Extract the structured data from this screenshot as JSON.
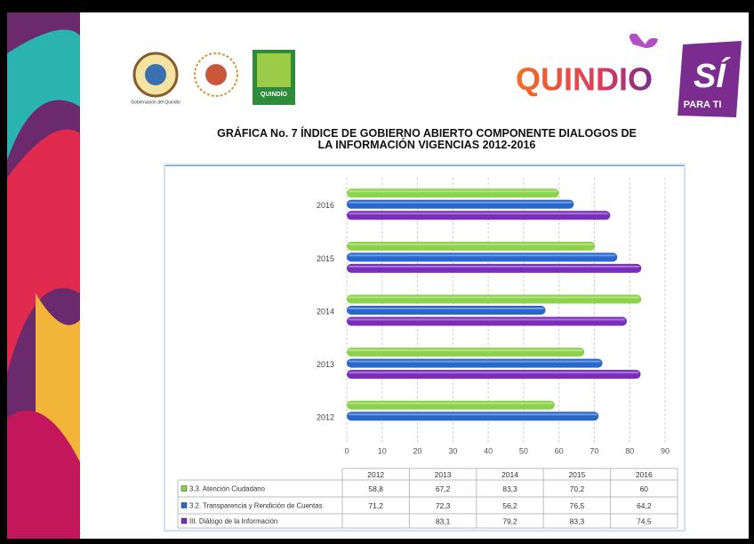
{
  "slide": {
    "logo_caption": "Gobernación del Quindío",
    "badge_text": "QUINDÍO",
    "brand": "QUINDIO",
    "brand_mark": "SÍ",
    "brand_tagline": "PARA TI"
  },
  "chart_data": {
    "type": "hbar",
    "title": "GRÁFICA  No. 7  ÍNDICE DE GOBIERNO ABIERTO  COMPONENTE  DIALOGOS DE\nLA INFORMACIÓN VIGENCIAS  2012-2016",
    "categories": [
      "2012",
      "2013",
      "2014",
      "2015",
      "2016"
    ],
    "series": [
      {
        "name": "3.3. Atención Ciudadano",
        "color": "#8cd24a",
        "values": [
          58.8,
          67.2,
          83.3,
          70.2,
          60
        ],
        "value_labels": [
          "58,8",
          "67,2",
          "83,3",
          "70,2",
          "60"
        ]
      },
      {
        "name": "3.2. Transparencia y Rendición de Cuentas",
        "color": "#2868cc",
        "values": [
          71.2,
          72.3,
          56.2,
          76.5,
          64.2
        ],
        "value_labels": [
          "71,2",
          "72,3",
          "56,2",
          "76,5",
          "64,2"
        ]
      },
      {
        "name": "III. Diálogo de la Información",
        "color": "#7a2dbd",
        "values": [
          null,
          83.1,
          79.2,
          83.3,
          74.5
        ],
        "value_labels": [
          null,
          "83,1",
          "79,2",
          "83,3",
          "74,5"
        ]
      }
    ],
    "xlim": [
      0,
      90
    ],
    "xticks": [
      0,
      10,
      20,
      30,
      40,
      50,
      60,
      70,
      80,
      90
    ],
    "grid": true
  }
}
